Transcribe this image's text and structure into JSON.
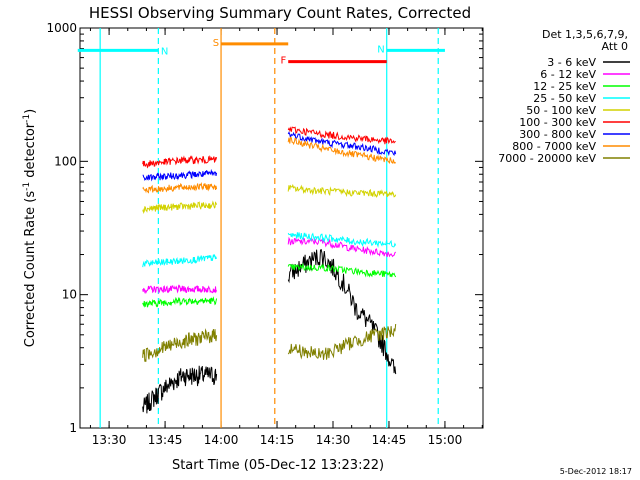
{
  "chart_data": {
    "type": "line",
    "title": "HESSI Observing Summary Count Rates, Corrected",
    "xlabel": "Start Time (05-Dec-12 13:23:22)",
    "ylabel": "Corrected Count Rate (s",
    "ylabel_sup1": "-1",
    "ylabel_mid": " detector",
    "ylabel_sup2": "-1",
    "ylabel_end": ")",
    "yscale": "log",
    "ylim": [
      1,
      1000
    ],
    "xlim_minutes": [
      13.37,
      15.17
    ],
    "x_ticks": [
      {
        "label": "13:30",
        "hour": 13.5
      },
      {
        "label": "13:45",
        "hour": 13.75
      },
      {
        "label": "14:00",
        "hour": 14.0
      },
      {
        "label": "14:15",
        "hour": 14.25
      },
      {
        "label": "14:30",
        "hour": 14.5
      },
      {
        "label": "14:45",
        "hour": 14.75
      },
      {
        "label": "15:00",
        "hour": 15.0
      }
    ],
    "y_ticks": [
      {
        "label": "1",
        "value": 1
      },
      {
        "label": "10",
        "value": 10
      },
      {
        "label": "100",
        "value": 100
      },
      {
        "label": "1000",
        "value": 1000
      }
    ],
    "legend_header": [
      "Det 1,3,5,6,7,9,",
      "Att 0"
    ],
    "timestamp": "5-Dec-2012 18:17",
    "series": [
      {
        "name": "3 - 6 keV",
        "color": "#000000",
        "pass1": [
          1.4,
          2.5,
          2.5
        ],
        "pass2": [
          14,
          20,
          8,
          2.5
        ]
      },
      {
        "name": "6 - 12 keV",
        "color": "#ff00ff",
        "pass1": [
          11,
          11,
          11
        ],
        "pass2": [
          25,
          25,
          22,
          20
        ]
      },
      {
        "name": "12 - 25 keV",
        "color": "#00ff00",
        "pass1": [
          8.5,
          9,
          9
        ],
        "pass2": [
          16,
          16,
          15,
          14
        ]
      },
      {
        "name": "25 - 50 keV",
        "color": "#00ffff",
        "pass1": [
          17,
          18,
          19
        ],
        "pass2": [
          28,
          27,
          25,
          24
        ]
      },
      {
        "name": "50 - 100 keV",
        "color": "#d2d200",
        "pass1": [
          44,
          46,
          47
        ],
        "pass2": [
          63,
          60,
          58,
          57
        ]
      },
      {
        "name": "100 - 300 keV",
        "color": "#ff0000",
        "pass1": [
          95,
          102,
          103
        ],
        "pass2": [
          175,
          160,
          150,
          140
        ]
      },
      {
        "name": "300 - 800 keV",
        "color": "#0000ff",
        "pass1": [
          75,
          79,
          81
        ],
        "pass2": [
          160,
          140,
          130,
          115
        ]
      },
      {
        "name": "800 - 7000 keV",
        "color": "#ff8c00",
        "pass1": [
          61,
          64,
          65
        ],
        "pass2": [
          145,
          125,
          112,
          100
        ]
      },
      {
        "name": "7000 - 20000 keV",
        "color": "#808000",
        "pass1": [
          3.5,
          4.5,
          5
        ],
        "pass2": [
          4,
          3.5,
          4.5,
          5.5
        ]
      }
    ],
    "pass1_hours": [
      13.65,
      13.83,
      13.98
    ],
    "pass2_hours": [
      14.3,
      14.45,
      14.6,
      14.78
    ],
    "flags": [
      {
        "label": "N",
        "color": "#00ffff",
        "start_hour": 13.36,
        "end_hour": 13.72,
        "value": 680
      },
      {
        "label": "N",
        "color": "#00ffff",
        "start_hour": 14.74,
        "end_hour": 15.0,
        "value": 680
      },
      {
        "label": "S",
        "color": "#ff8c00",
        "start_hour": 14.0,
        "end_hour": 14.3,
        "value": 760
      },
      {
        "label": "F",
        "color": "#ff0000",
        "start_hour": 14.3,
        "end_hour": 14.74,
        "value": 560
      }
    ],
    "vertical_lines": [
      {
        "hour": 13.46,
        "color": "#00ffff",
        "dashed": false
      },
      {
        "hour": 13.72,
        "color": "#00ffff",
        "dashed": true
      },
      {
        "hour": 14.0,
        "color": "#ff8c00",
        "dashed": false
      },
      {
        "hour": 14.24,
        "color": "#ff8c00",
        "dashed": true
      },
      {
        "hour": 14.74,
        "color": "#00ffff",
        "dashed": false
      },
      {
        "hour": 14.97,
        "color": "#00ffff",
        "dashed": true
      }
    ]
  }
}
